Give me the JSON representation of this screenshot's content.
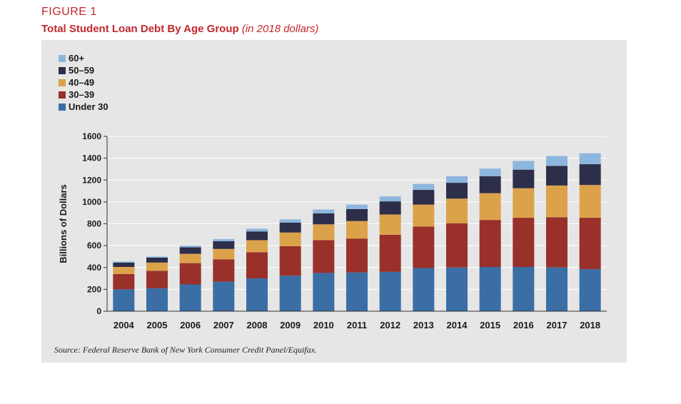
{
  "figure": {
    "label": "FIGURE 1",
    "title": "Total Student Loan Debt By Age Group",
    "subtitle": "(in 2018 dollars)",
    "source": "Source: Federal Reserve Bank of New York Consumer Credit Panel/Equifax."
  },
  "colors": {
    "under30": "#3a6ea5",
    "30-39": "#99302a",
    "40-49": "#dca24a",
    "50-59": "#2d2e4a",
    "60plus": "#8db6de",
    "title_red": "#c2272d",
    "panel": "#e6e6e6"
  },
  "legend": [
    {
      "label": "60+",
      "key": "60plus"
    },
    {
      "label": "50–59",
      "key": "50-59"
    },
    {
      "label": "40–49",
      "key": "40-49"
    },
    {
      "label": "30–39",
      "key": "30-39"
    },
    {
      "label": "Under 30",
      "key": "under30"
    }
  ],
  "chart_data": {
    "type": "bar",
    "stacked": true,
    "title": "Total Student Loan Debt By Age Group",
    "subtitle": "(in 2018 dollars)",
    "xlabel": "",
    "ylabel": "Billions of Dollars",
    "ylim": [
      0,
      1600
    ],
    "yticks": [
      0,
      200,
      400,
      600,
      800,
      1000,
      1200,
      1400,
      1600
    ],
    "grid": true,
    "legend_position": "top-left",
    "categories": [
      "2004",
      "2005",
      "2006",
      "2007",
      "2008",
      "2009",
      "2010",
      "2011",
      "2012",
      "2013",
      "2014",
      "2015",
      "2016",
      "2017",
      "2018"
    ],
    "series": [
      {
        "name": "Under 30",
        "key": "under30",
        "values": [
          200,
          210,
          245,
          270,
          300,
          325,
          350,
          355,
          360,
          395,
          400,
          405,
          405,
          400,
          385
        ]
      },
      {
        "name": "30–39",
        "key": "30-39",
        "values": [
          140,
          160,
          195,
          205,
          240,
          270,
          300,
          310,
          340,
          380,
          405,
          430,
          450,
          460,
          470
        ]
      },
      {
        "name": "40–49",
        "key": "40-49",
        "values": [
          65,
          75,
          85,
          95,
          110,
          125,
          145,
          160,
          185,
          200,
          225,
          245,
          270,
          290,
          300
        ]
      },
      {
        "name": "50–59",
        "key": "50-59",
        "values": [
          40,
          45,
          60,
          70,
          80,
          90,
          100,
          110,
          120,
          135,
          145,
          155,
          170,
          180,
          190
        ]
      },
      {
        "name": "60+",
        "key": "60plus",
        "values": [
          10,
          10,
          15,
          20,
          25,
          30,
          35,
          40,
          45,
          55,
          60,
          70,
          80,
          90,
          100
        ]
      }
    ]
  }
}
